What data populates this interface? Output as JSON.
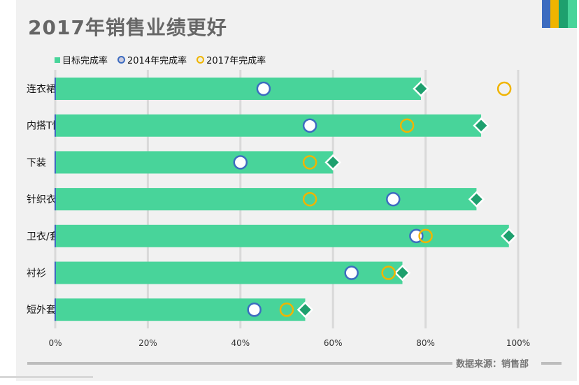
{
  "title": "2017年销售业绩更好",
  "source": "数据来源：销售部",
  "colors": {
    "target": "#48d49a",
    "target_marker": "#1ea06e",
    "y2014": "#3d6cc0",
    "y2017": "#f0b400",
    "brand": [
      "#3d6cc0",
      "#f0b400",
      "#1ea06e",
      "#48d49a"
    ]
  },
  "chart_data": {
    "type": "bar",
    "orientation": "horizontal",
    "title": "2017年销售业绩更好",
    "categories": [
      "连衣裙",
      "内搭T恤",
      "下装",
      "针织衣",
      "卫衣/套装",
      "衬衫",
      "短外套"
    ],
    "series": [
      {
        "name": "目标完成率",
        "marker": "bar",
        "values": [
          79,
          92,
          60,
          91,
          98,
          75,
          54
        ]
      },
      {
        "name": "2014年完成率",
        "marker": "circle",
        "values": [
          45,
          55,
          40,
          73,
          78,
          64,
          43
        ]
      },
      {
        "name": "2017年完成率",
        "marker": "ring",
        "values": [
          97,
          76,
          55,
          55,
          80,
          72,
          50
        ]
      }
    ],
    "xlim": [
      0,
      100
    ],
    "xticks": [
      "0%",
      "20%",
      "40%",
      "60%",
      "80%",
      "100%"
    ],
    "grid": true,
    "legend": "top-left"
  }
}
